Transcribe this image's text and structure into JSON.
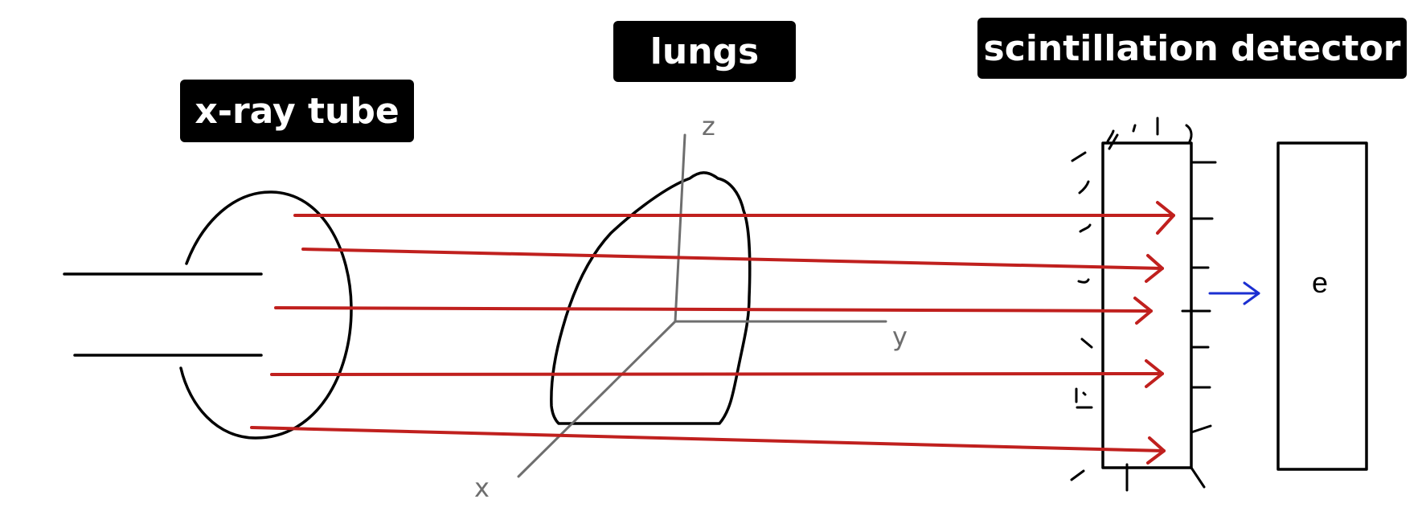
{
  "labels": {
    "xray_tube": "x-ray tube",
    "lungs": "lungs",
    "detector": "scintillation detector"
  },
  "axes": {
    "x": "x",
    "y": "y",
    "z": "z"
  },
  "electronics_box": {
    "letter": "e"
  },
  "colors": {
    "beam": "#c0201e",
    "signal_arrow": "#1b2fd1",
    "axes": "#6e6e6e",
    "label_background": "#000000",
    "label_text": "#ffffff"
  }
}
